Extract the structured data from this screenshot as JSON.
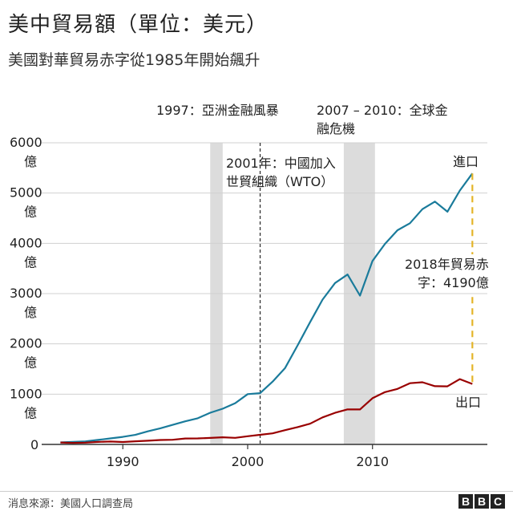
{
  "title": "美中貿易額（單位：美元）",
  "subtitle": "美國對華貿易赤字從1985年開始飆升",
  "source": "消息來源：美國人口調查局",
  "logo": [
    "B",
    "B",
    "C"
  ],
  "colors": {
    "imports": "#1a7b9b",
    "exports": "#990000",
    "shade": "#dcdcdc",
    "deficit": "#e3b428",
    "grid": "#d0d0d0",
    "axis": "#333333"
  },
  "chart_data": {
    "type": "line",
    "x": [
      1985,
      1986,
      1987,
      1988,
      1989,
      1990,
      1991,
      1992,
      1993,
      1994,
      1995,
      1996,
      1997,
      1998,
      1999,
      2000,
      2001,
      2002,
      2003,
      2004,
      2005,
      2006,
      2007,
      2008,
      2009,
      2010,
      2011,
      2012,
      2013,
      2014,
      2015,
      2016,
      2017,
      2018
    ],
    "series": [
      {
        "name": "進口",
        "values": [
          4,
          5,
          6,
          9,
          12,
          15,
          19,
          26,
          32,
          39,
          46,
          52,
          63,
          71,
          82,
          100,
          102,
          125,
          152,
          197,
          243,
          288,
          321,
          338,
          296,
          365,
          399,
          426,
          440,
          468,
          483,
          463,
          505,
          539
        ]
      },
      {
        "name": "出口",
        "values": [
          3.9,
          3.1,
          3.5,
          5.0,
          5.8,
          4.8,
          6.3,
          7.4,
          8.8,
          9.3,
          11.8,
          12.0,
          12.9,
          14.2,
          13.1,
          16.2,
          19.2,
          22.1,
          28.4,
          34.4,
          41.2,
          53.7,
          62.9,
          69.7,
          69.5,
          91.9,
          104.1,
          110.5,
          121.7,
          123.7,
          115.9,
          115.6,
          129.9,
          120.3
        ]
      }
    ],
    "yticks": [
      {
        "value": 0,
        "label": "0"
      },
      {
        "value": 100,
        "label": "1000",
        "unit": "億"
      },
      {
        "value": 200,
        "label": "2000",
        "unit": "億"
      },
      {
        "value": 300,
        "label": "3000",
        "unit": "億"
      },
      {
        "value": 400,
        "label": "4000",
        "unit": "億"
      },
      {
        "value": 500,
        "label": "5000",
        "unit": "億"
      },
      {
        "value": 600,
        "label": "6000",
        "unit": "億"
      }
    ],
    "xticks": [
      1990,
      2000,
      2010
    ],
    "ylim": [
      0,
      600
    ],
    "xlim": [
      1983.5,
      2019.2
    ],
    "shaded_periods": [
      {
        "start": 1997,
        "end": 1998,
        "label": "1997：亞洲金融風暴"
      },
      {
        "start": 2007.7,
        "end": 2010.2,
        "label_line1": "2007 – 2010：全球金",
        "label_line2": "融危機"
      }
    ],
    "event_line": {
      "x": 2001,
      "label_line1": "2001年：中國加入",
      "label_line2": "世貿組織（WTO）"
    },
    "series_labels": {
      "imports": "進口",
      "exports": "出口"
    },
    "deficit": {
      "x": 2018,
      "label_line1": "2018年貿易赤",
      "label_line2": "字：4190億"
    },
    "grid": true
  }
}
